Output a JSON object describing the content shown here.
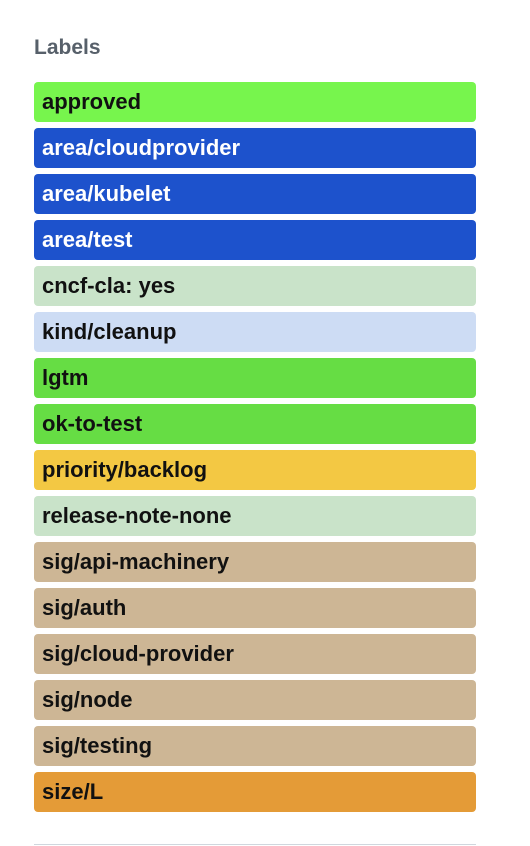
{
  "sidebar": {
    "heading": "Labels",
    "labels": [
      {
        "text": "approved",
        "bg": "#77f54d",
        "fg": "#111111"
      },
      {
        "text": "area/cloudprovider",
        "bg": "#1d52cc",
        "fg": "#ffffff"
      },
      {
        "text": "area/kubelet",
        "bg": "#1d52cc",
        "fg": "#ffffff"
      },
      {
        "text": "area/test",
        "bg": "#1d52cc",
        "fg": "#ffffff"
      },
      {
        "text": "cncf-cla: yes",
        "bg": "#c9e3c9",
        "fg": "#111111"
      },
      {
        "text": "kind/cleanup",
        "bg": "#cddcf4",
        "fg": "#111111"
      },
      {
        "text": "lgtm",
        "bg": "#66dd44",
        "fg": "#111111"
      },
      {
        "text": "ok-to-test",
        "bg": "#66dd44",
        "fg": "#111111"
      },
      {
        "text": "priority/backlog",
        "bg": "#f3c843",
        "fg": "#111111"
      },
      {
        "text": "release-note-none",
        "bg": "#c9e3c9",
        "fg": "#111111"
      },
      {
        "text": "sig/api-machinery",
        "bg": "#cdb695",
        "fg": "#111111"
      },
      {
        "text": "sig/auth",
        "bg": "#cdb695",
        "fg": "#111111"
      },
      {
        "text": "sig/cloud-provider",
        "bg": "#cdb695",
        "fg": "#111111"
      },
      {
        "text": "sig/node",
        "bg": "#cdb695",
        "fg": "#111111"
      },
      {
        "text": "sig/testing",
        "bg": "#cdb695",
        "fg": "#111111"
      },
      {
        "text": "size/L",
        "bg": "#e49b37",
        "fg": "#111111"
      }
    ]
  }
}
